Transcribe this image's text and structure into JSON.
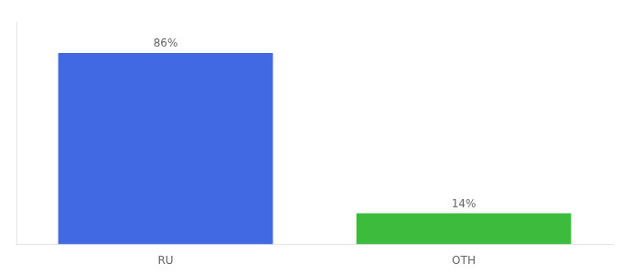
{
  "chart_data": {
    "type": "bar",
    "categories": [
      "RU",
      "OTH"
    ],
    "values": [
      86,
      14
    ],
    "value_labels": [
      "86%",
      "14%"
    ],
    "colors": [
      "#4169e1",
      "#3dbb3d"
    ],
    "ylim": [
      0,
      100
    ],
    "grid": false,
    "data_labels": true,
    "tick_labels": "x"
  }
}
